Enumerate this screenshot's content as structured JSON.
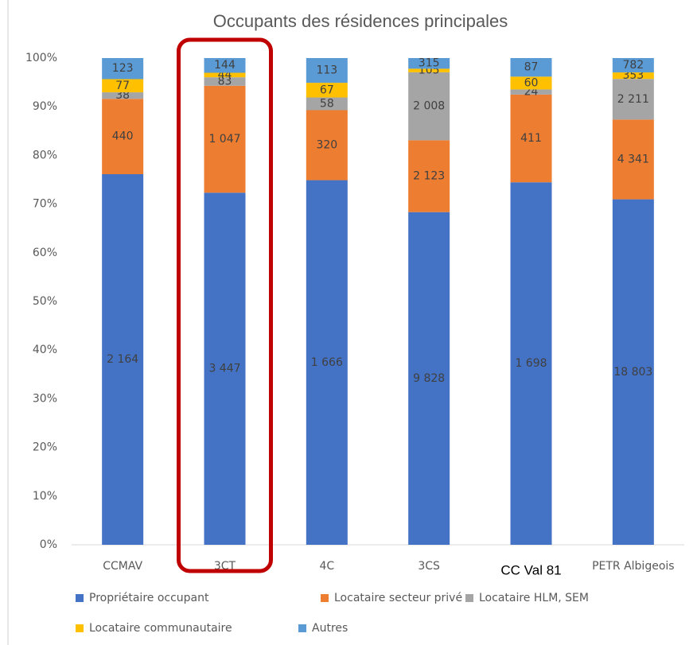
{
  "chart_data": {
    "type": "bar",
    "stack": "percent",
    "title": "Occupants des résidences principales",
    "categories": [
      "CCMAV",
      "3CT",
      "4C",
      "3CS",
      "CC Val 81",
      "PETR Albigeois"
    ],
    "ylim": [
      0,
      100
    ],
    "yticks": [
      {
        "value": 0,
        "label": "0%"
      },
      {
        "value": 10,
        "label": "10%"
      },
      {
        "value": 20,
        "label": "20%"
      },
      {
        "value": 30,
        "label": "30%"
      },
      {
        "value": 40,
        "label": "40%"
      },
      {
        "value": 50,
        "label": "50%"
      },
      {
        "value": 60,
        "label": "60%"
      },
      {
        "value": 70,
        "label": "70%"
      },
      {
        "value": 80,
        "label": "80%"
      },
      {
        "value": 90,
        "label": "90%"
      },
      {
        "value": 100,
        "label": "100%"
      }
    ],
    "series": [
      {
        "name": "Propriétaire occupant",
        "color": "#4472c4",
        "values": [
          2164,
          3447,
          1666,
          9828,
          1698,
          18803
        ],
        "value_labels": [
          "2 164",
          "3 447",
          "1 666",
          "9 828",
          "1 698",
          "18 803"
        ]
      },
      {
        "name": "Locataire secteur privé",
        "color": "#ed7d31",
        "values": [
          440,
          1047,
          320,
          2123,
          411,
          4341
        ],
        "value_labels": [
          "440",
          "1 047",
          "320",
          "2 123",
          "411",
          "4 341"
        ]
      },
      {
        "name": "Locataire HLM, SEM",
        "color": "#a5a5a5",
        "values": [
          38,
          83,
          58,
          2008,
          24,
          2211
        ],
        "value_labels": [
          "38",
          "83",
          "58",
          "2 008",
          "24",
          "2 211"
        ]
      },
      {
        "name": "Locataire communautaire",
        "color": "#ffc000",
        "values": [
          77,
          44,
          67,
          105,
          60,
          353
        ],
        "value_labels": [
          "77",
          "44",
          "67",
          "105",
          "60",
          "353"
        ]
      },
      {
        "name": "Autres",
        "color": "#5b9bd5",
        "values": [
          123,
          144,
          113,
          315,
          87,
          782
        ],
        "value_labels": [
          "123",
          "144",
          "113",
          "315",
          "87",
          "782"
        ]
      }
    ],
    "legend": "bottom",
    "grid": false
  }
}
